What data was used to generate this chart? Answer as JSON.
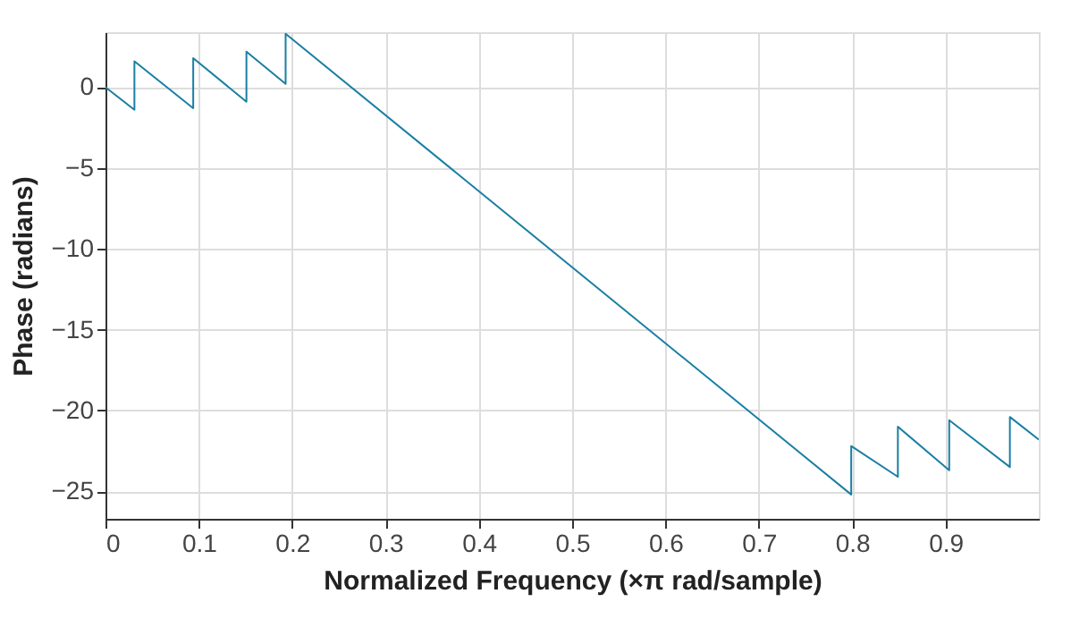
{
  "chart_data": {
    "type": "line",
    "xlabel": "Normalized Frequency (×π rad/sample)",
    "ylabel": "Phase (radians)",
    "x": [
      0,
      0.031,
      0.031,
      0.094,
      0.094,
      0.151,
      0.151,
      0.193,
      0.193,
      0.799,
      0.799,
      0.849,
      0.849,
      0.904,
      0.904,
      0.969,
      0.969,
      1.0
    ],
    "series": [
      {
        "color": "#1a7fa3",
        "values": [
          0,
          -1.4,
          1.6,
          -1.3,
          1.8,
          -0.9,
          2.2,
          0.2,
          3.3,
          -25.2,
          -22.2,
          -24.1,
          -21.0,
          -23.7,
          -20.6,
          -23.5,
          -20.4,
          -21.8
        ]
      }
    ],
    "xlim": [
      0,
      1
    ],
    "xticks": [
      0,
      0.1,
      0.2,
      0.3,
      0.4,
      0.5,
      0.6,
      0.7,
      0.8,
      0.9
    ],
    "ylim": [
      -26.7,
      3.4
    ],
    "yticks": [
      -25,
      -20,
      -15,
      -10,
      -5,
      0
    ],
    "grid": true,
    "legend": false,
    "line_style": "solid",
    "marker": "none"
  }
}
